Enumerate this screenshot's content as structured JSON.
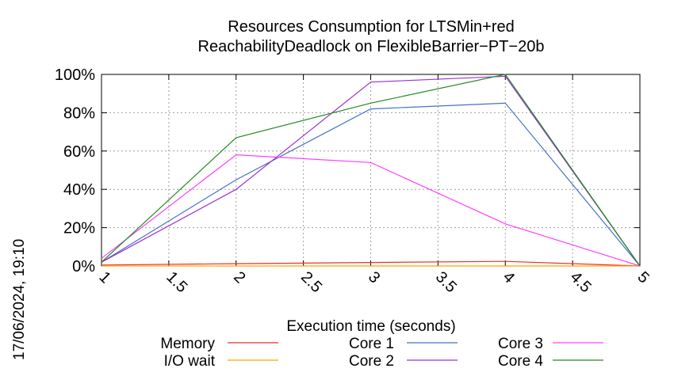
{
  "chart_data": {
    "type": "line",
    "title": [
      "Resources Consumption for LTSMin+red",
      "ReachabilityDeadlock on FlexibleBarrier−PT−20b"
    ],
    "xlabel": "Execution time (seconds)",
    "ylabel": "",
    "timestamp": "17/06/2024, 19:10",
    "xlim": [
      1,
      5
    ],
    "ylim": [
      0,
      100
    ],
    "x_ticks": [
      "1",
      "1.5",
      "2",
      "2.5",
      "3",
      "3.5",
      "4",
      "4.5",
      "5"
    ],
    "y_ticks": [
      "0%",
      "20%",
      "40%",
      "60%",
      "80%",
      "100%"
    ],
    "grid": true,
    "legend_position": "bottom",
    "series": [
      {
        "name": "Memory",
        "color": "#e8302a",
        "x": [
          1,
          2,
          3,
          4,
          5
        ],
        "y": [
          0.5,
          1.2,
          1.8,
          2.4,
          0
        ]
      },
      {
        "name": "I/O wait",
        "color": "#ffa500",
        "x": [
          1,
          2,
          3,
          4,
          5
        ],
        "y": [
          0,
          0,
          0,
          0,
          0
        ]
      },
      {
        "name": "Core 1",
        "color": "#4472c4",
        "x": [
          1,
          2,
          3,
          4,
          5
        ],
        "y": [
          2,
          45,
          82,
          85,
          0
        ]
      },
      {
        "name": "Core 2",
        "color": "#9b30d9",
        "x": [
          1,
          2,
          3,
          4,
          5
        ],
        "y": [
          2,
          40,
          96,
          99,
          0
        ]
      },
      {
        "name": "Core 3",
        "color": "#ff40ff",
        "x": [
          1,
          2,
          3,
          4,
          5
        ],
        "y": [
          4,
          58,
          54,
          22,
          0
        ]
      },
      {
        "name": "Core 4",
        "color": "#228b22",
        "x": [
          1,
          2,
          3,
          4,
          5
        ],
        "y": [
          2,
          67,
          85,
          100,
          0
        ]
      }
    ]
  }
}
